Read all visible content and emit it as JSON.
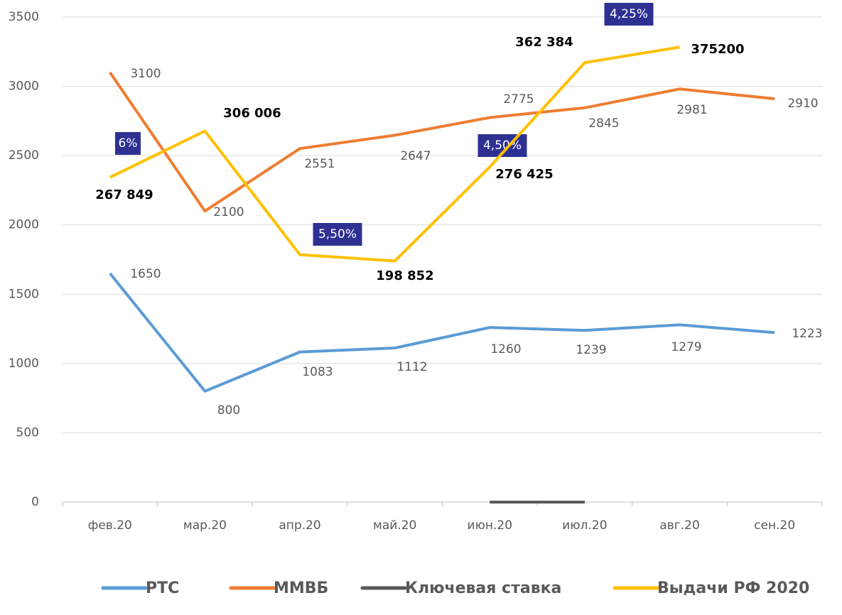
{
  "chart_data": {
    "type": "line",
    "categories": [
      "фев.20",
      "мар.20",
      "апр.20",
      "май.20",
      "июн.20",
      "июл.20",
      "авг.20",
      "сен.20"
    ],
    "ylim": [
      0,
      3500
    ],
    "yticks": [
      0,
      500,
      1000,
      1500,
      2000,
      2500,
      3000,
      3500
    ],
    "y2lim": [
      0,
      400000
    ],
    "grid": true,
    "legend": "bottom",
    "series": [
      {
        "name": "РТС",
        "color": "#5b9bd5",
        "values": [
          1650,
          800,
          1083,
          1112,
          1260,
          1239,
          1279,
          1223
        ]
      },
      {
        "name": "ММВБ",
        "color": "#ed7d31",
        "values": [
          3100,
          2100,
          2551,
          2647,
          2775,
          2845,
          2981,
          2910
        ]
      },
      {
        "name": "Ключевая ставка",
        "color": "#595959",
        "values": [
          6,
          null,
          5.5,
          null,
          4.5,
          4.25,
          null,
          null
        ],
        "value_labels": [
          "6%",
          null,
          "5,50%",
          null,
          "4,50%",
          "4,25%",
          null,
          null
        ]
      },
      {
        "name": "Выдачи РФ 2020",
        "color": "#ffc000",
        "axis": "y2",
        "values": [
          267849,
          306006,
          204000,
          198852,
          276425,
          362384,
          375200,
          null
        ],
        "value_labels": [
          "267 849",
          "306 006",
          null,
          "198 852",
          "276 425",
          "362 384",
          "375200",
          null
        ]
      }
    ]
  }
}
